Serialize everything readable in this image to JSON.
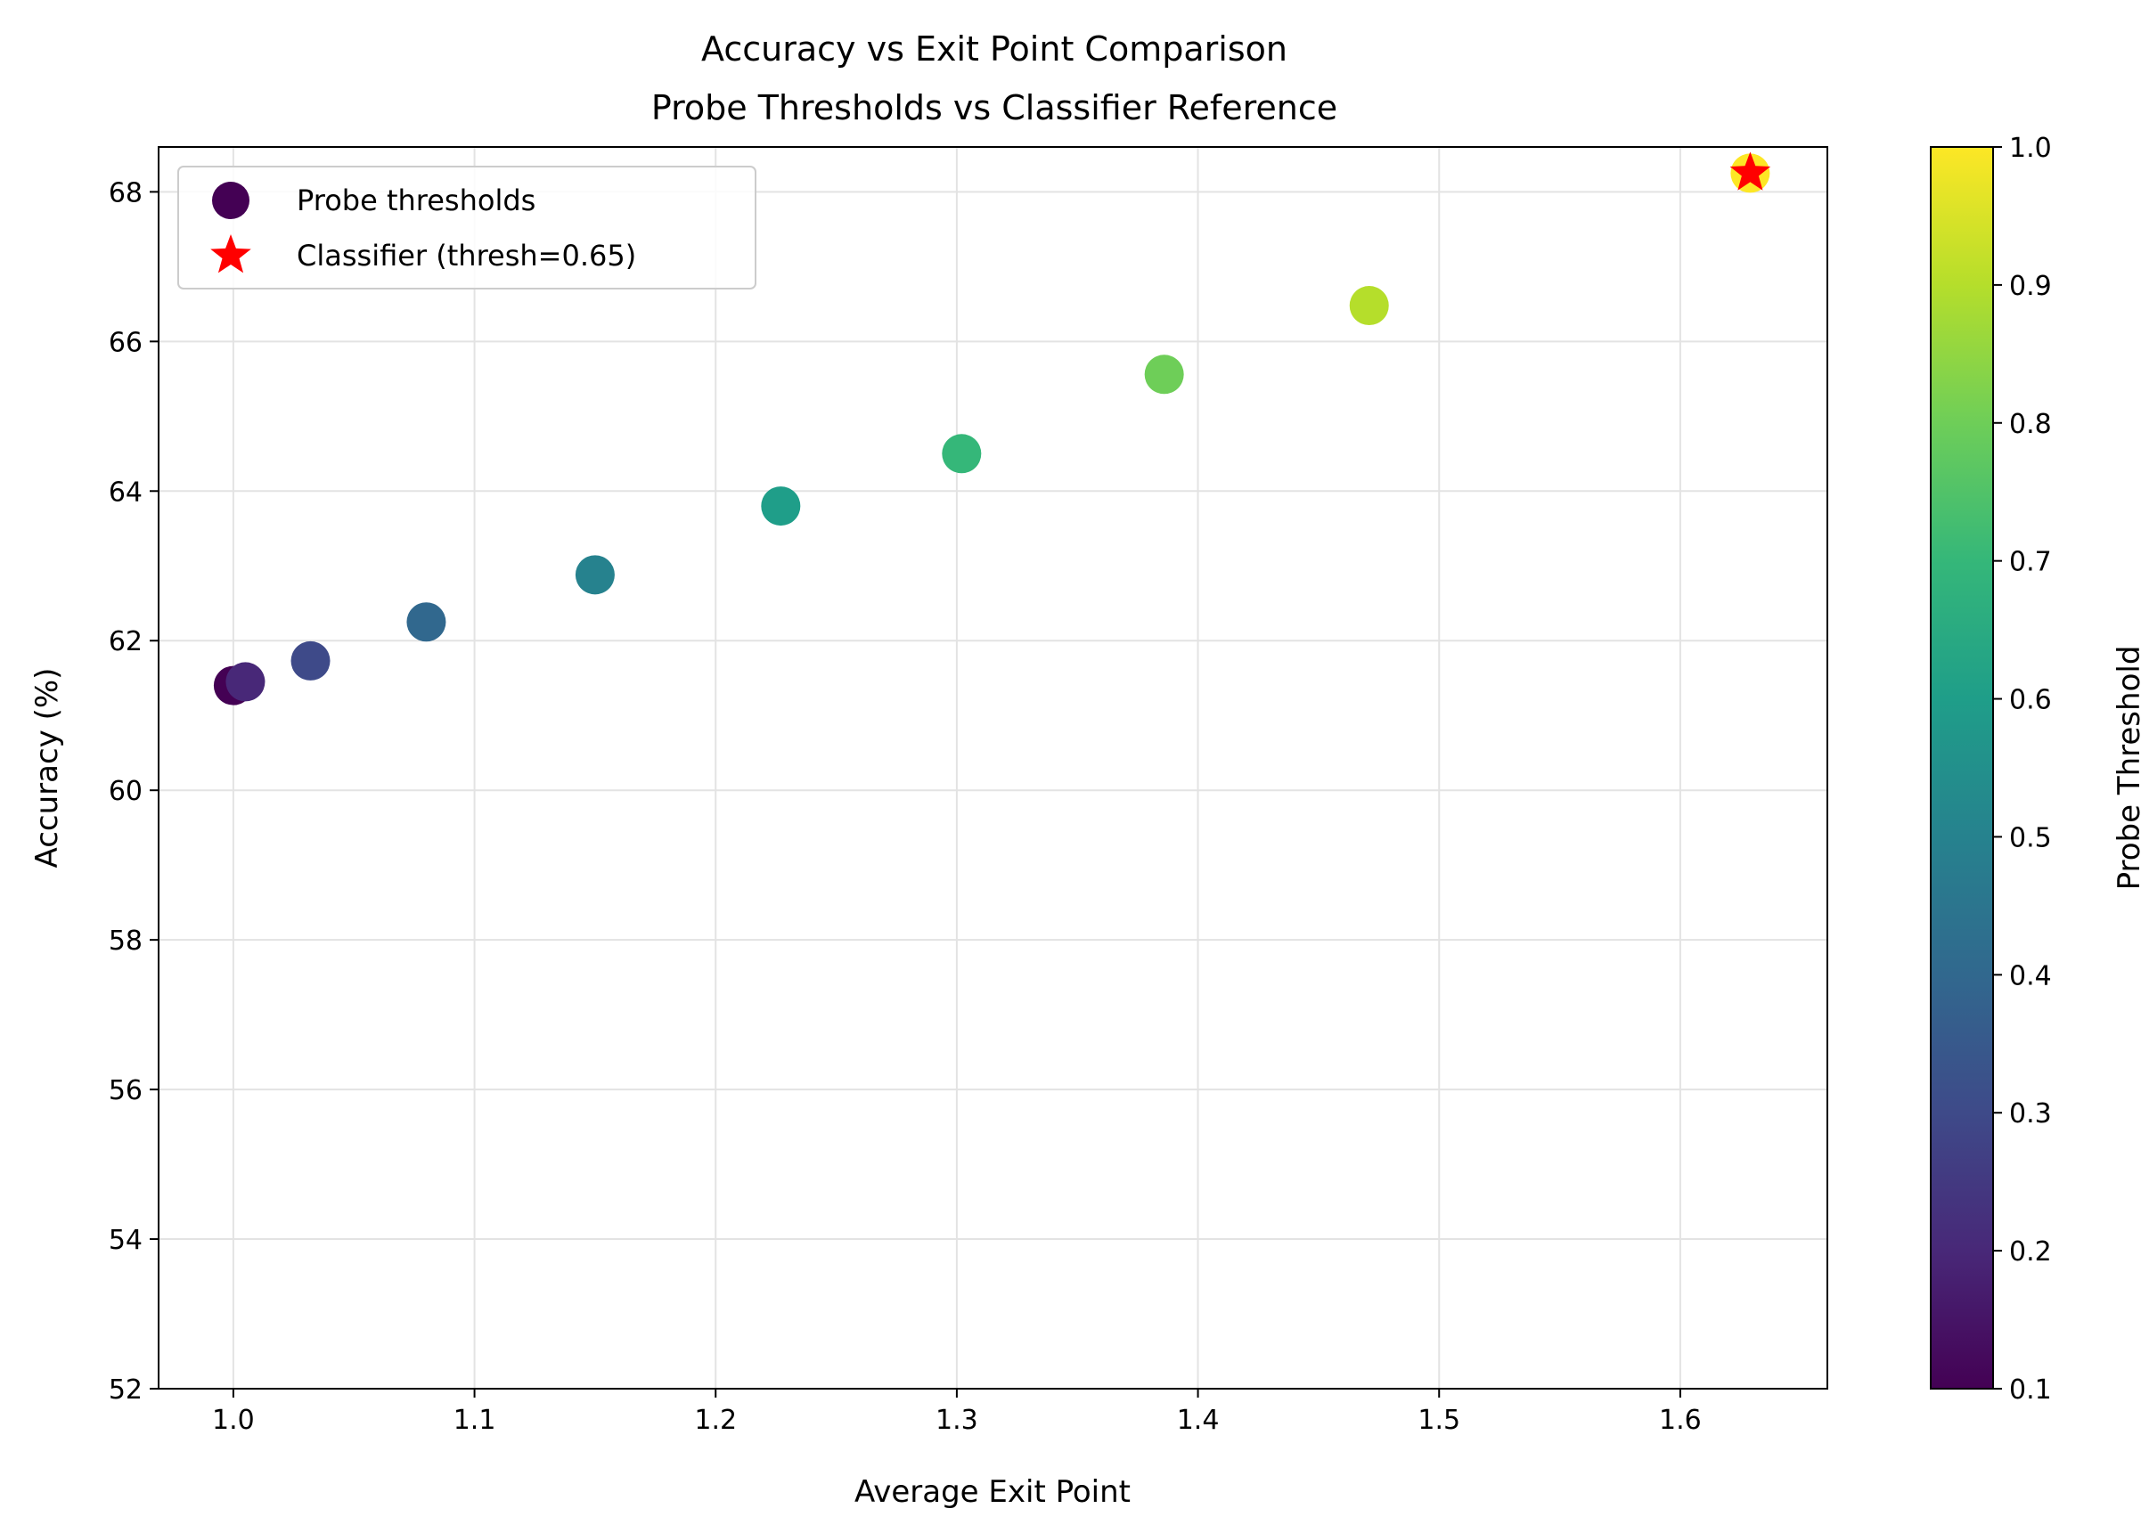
{
  "chart_data": {
    "type": "scatter",
    "title": "Accuracy vs Exit Point Comparison",
    "subtitle": "Probe Thresholds vs Classifier Reference",
    "xlabel": "Average Exit Point",
    "ylabel": "Accuracy (%)",
    "xlim": [
      0.969,
      1.661
    ],
    "ylim": [
      52,
      68.6
    ],
    "xticks": [
      "1.0",
      "1.1",
      "1.2",
      "1.3",
      "1.4",
      "1.5",
      "1.6"
    ],
    "yticks": [
      "52",
      "54",
      "56",
      "58",
      "60",
      "62",
      "64",
      "66",
      "68"
    ],
    "grid": true,
    "legend_position": "upper left",
    "series": [
      {
        "name": "Probe thresholds",
        "marker": "circle",
        "colormap": "viridis",
        "points": [
          {
            "x": 1.0,
            "y": 61.4,
            "threshold": 0.1
          },
          {
            "x": 1.005,
            "y": 61.45,
            "threshold": 0.2
          },
          {
            "x": 1.032,
            "y": 61.73,
            "threshold": 0.3
          },
          {
            "x": 1.08,
            "y": 62.25,
            "threshold": 0.4
          },
          {
            "x": 1.15,
            "y": 62.88,
            "threshold": 0.5
          },
          {
            "x": 1.227,
            "y": 63.8,
            "threshold": 0.6
          },
          {
            "x": 1.302,
            "y": 64.5,
            "threshold": 0.7
          },
          {
            "x": 1.386,
            "y": 65.56,
            "threshold": 0.8
          },
          {
            "x": 1.471,
            "y": 66.48,
            "threshold": 0.9
          },
          {
            "x": 1.629,
            "y": 68.25,
            "threshold": 1.0
          }
        ]
      },
      {
        "name": "Classifier (thresh=0.65)",
        "marker": "star",
        "color": "#ff0000",
        "points": [
          {
            "x": 1.629,
            "y": 68.25
          }
        ]
      }
    ],
    "colorbar": {
      "label": "Probe Threshold",
      "range": [
        0.1,
        1.0
      ],
      "ticks": [
        "0.1",
        "0.2",
        "0.3",
        "0.4",
        "0.5",
        "0.6",
        "0.7",
        "0.8",
        "0.9",
        "1.0"
      ],
      "colormap": "viridis"
    }
  }
}
